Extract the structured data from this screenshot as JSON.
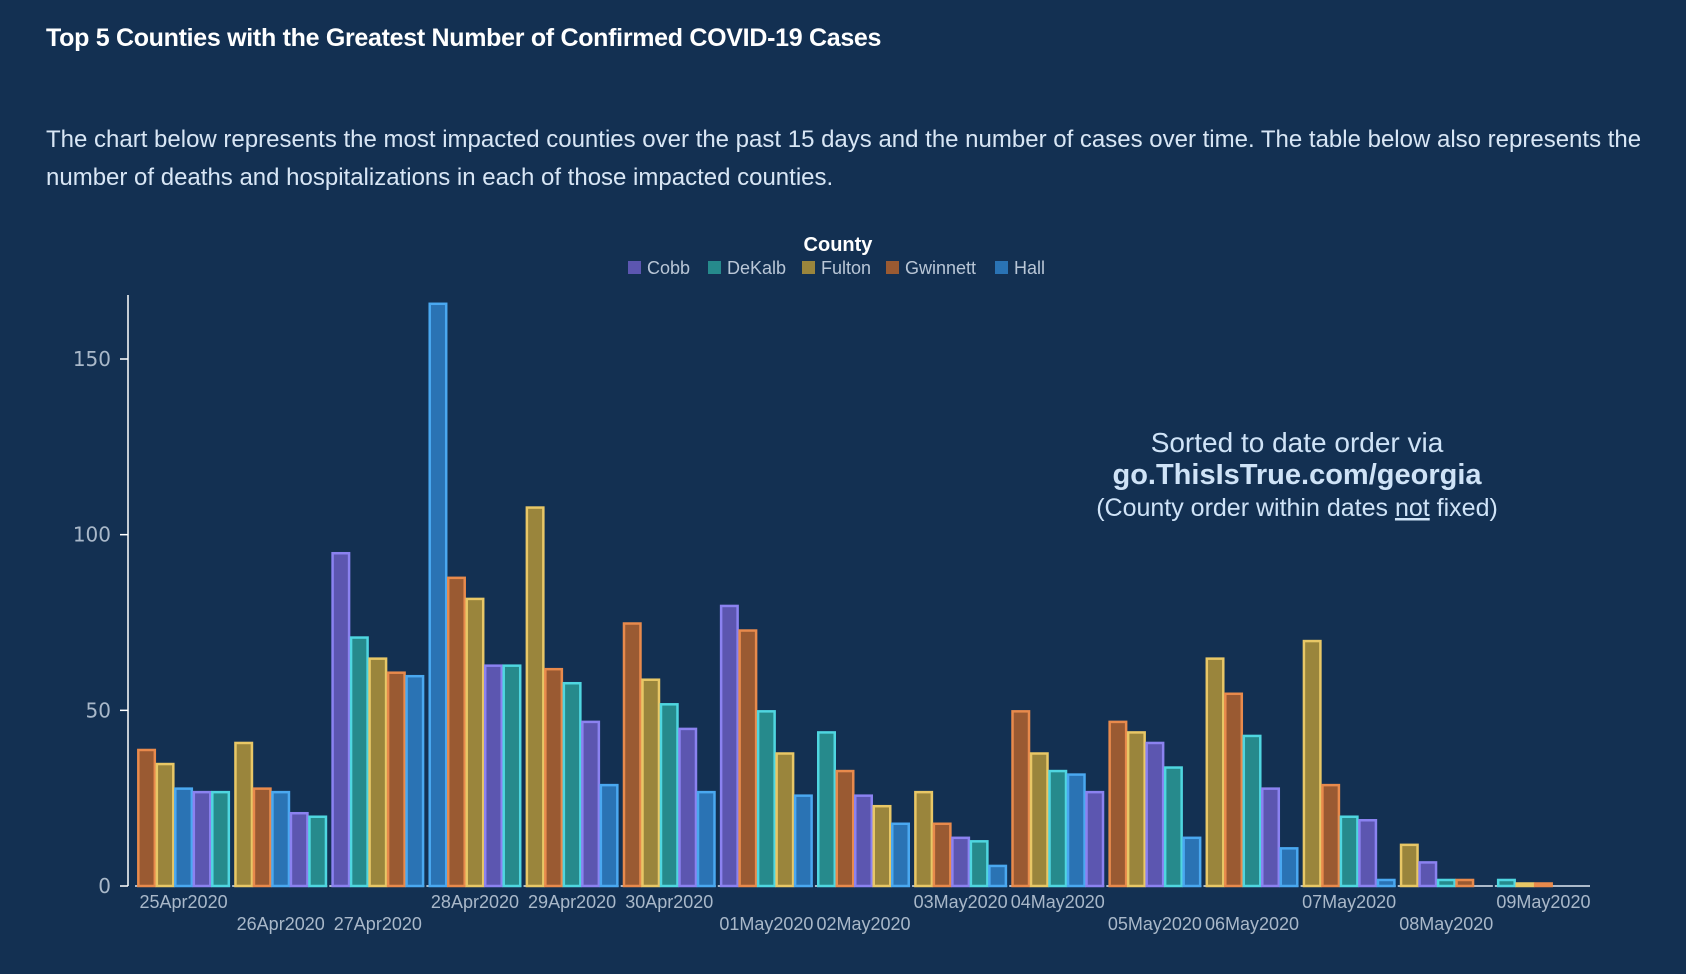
{
  "header": {
    "title": "Top 5 Counties with the Greatest Number of Confirmed COVID-19 Cases",
    "description": "The chart below represents the most impacted counties over the past 15 days and the number of cases over time. The table below also represents the number of deaths and hospitalizations in each of those impacted counties."
  },
  "annotation": {
    "line1": "Sorted to date order via",
    "line2": "go.ThisIsTrue.com/georgia",
    "line3_pre": "(County order within dates ",
    "line3_underlined": "not",
    "line3_post": " fixed)"
  },
  "chart_data": {
    "type": "bar",
    "title": "Top 5 Counties with the Greatest Number of Confirmed COVID-19 Cases",
    "xlabel": "",
    "ylabel": "",
    "ylim": [
      0,
      168
    ],
    "yticks": [
      0,
      50,
      100,
      150
    ],
    "grid": false,
    "legend": {
      "title": "County",
      "placement": "top-center",
      "entries": [
        {
          "name": "Cobb",
          "fill": "#5c56b0",
          "stroke": "#8b82f0"
        },
        {
          "name": "DeKalb",
          "fill": "#268a8c",
          "stroke": "#4fd6e0"
        },
        {
          "name": "Fulton",
          "fill": "#9a853c",
          "stroke": "#e8c766"
        },
        {
          "name": "Gwinnett",
          "fill": "#9a5a32",
          "stroke": "#e88a4c"
        },
        {
          "name": "Hall",
          "fill": "#2a73b4",
          "stroke": "#4aa8f0"
        }
      ]
    },
    "categories": [
      "25Apr2020",
      "26Apr2020",
      "27Apr2020",
      "28Apr2020",
      "29Apr2020",
      "30Apr2020",
      "01May2020",
      "02May2020",
      "03May2020",
      "04May2020",
      "05May2020",
      "06May2020",
      "07May2020",
      "08May2020",
      "09May2020"
    ],
    "groups": [
      {
        "date": "25Apr2020",
        "bars": [
          {
            "county": "Gwinnett",
            "value": 39
          },
          {
            "county": "Fulton",
            "value": 35
          },
          {
            "county": "Hall",
            "value": 28
          },
          {
            "county": "Cobb",
            "value": 27
          },
          {
            "county": "DeKalb",
            "value": 27
          }
        ]
      },
      {
        "date": "26Apr2020",
        "bars": [
          {
            "county": "Fulton",
            "value": 41
          },
          {
            "county": "Gwinnett",
            "value": 28
          },
          {
            "county": "Hall",
            "value": 27
          },
          {
            "county": "Cobb",
            "value": 21
          },
          {
            "county": "DeKalb",
            "value": 20
          }
        ]
      },
      {
        "date": "27Apr2020",
        "bars": [
          {
            "county": "Cobb",
            "value": 95
          },
          {
            "county": "DeKalb",
            "value": 71
          },
          {
            "county": "Fulton",
            "value": 65
          },
          {
            "county": "Gwinnett",
            "value": 61
          },
          {
            "county": "Hall",
            "value": 60
          }
        ]
      },
      {
        "date": "28Apr2020",
        "bars": [
          {
            "county": "Hall",
            "value": 166
          },
          {
            "county": "Gwinnett",
            "value": 88
          },
          {
            "county": "Fulton",
            "value": 82
          },
          {
            "county": "Cobb",
            "value": 63
          },
          {
            "county": "DeKalb",
            "value": 63
          }
        ]
      },
      {
        "date": "29Apr2020",
        "bars": [
          {
            "county": "Fulton",
            "value": 108
          },
          {
            "county": "Gwinnett",
            "value": 62
          },
          {
            "county": "DeKalb",
            "value": 58
          },
          {
            "county": "Cobb",
            "value": 47
          },
          {
            "county": "Hall",
            "value": 29
          }
        ]
      },
      {
        "date": "30Apr2020",
        "bars": [
          {
            "county": "Gwinnett",
            "value": 75
          },
          {
            "county": "Fulton",
            "value": 59
          },
          {
            "county": "DeKalb",
            "value": 52
          },
          {
            "county": "Cobb",
            "value": 45
          },
          {
            "county": "Hall",
            "value": 27
          }
        ]
      },
      {
        "date": "01May2020",
        "bars": [
          {
            "county": "Cobb",
            "value": 80
          },
          {
            "county": "Gwinnett",
            "value": 73
          },
          {
            "county": "DeKalb",
            "value": 50
          },
          {
            "county": "Fulton",
            "value": 38
          },
          {
            "county": "Hall",
            "value": 26
          }
        ]
      },
      {
        "date": "02May2020",
        "bars": [
          {
            "county": "DeKalb",
            "value": 44
          },
          {
            "county": "Gwinnett",
            "value": 33
          },
          {
            "county": "Cobb",
            "value": 26
          },
          {
            "county": "Fulton",
            "value": 23
          },
          {
            "county": "Hall",
            "value": 18
          }
        ]
      },
      {
        "date": "03May2020",
        "bars": [
          {
            "county": "Fulton",
            "value": 27
          },
          {
            "county": "Gwinnett",
            "value": 18
          },
          {
            "county": "Cobb",
            "value": 14
          },
          {
            "county": "DeKalb",
            "value": 13
          },
          {
            "county": "Hall",
            "value": 6
          }
        ]
      },
      {
        "date": "04May2020",
        "bars": [
          {
            "county": "Gwinnett",
            "value": 50
          },
          {
            "county": "Fulton",
            "value": 38
          },
          {
            "county": "DeKalb",
            "value": 33
          },
          {
            "county": "Hall",
            "value": 32
          },
          {
            "county": "Cobb",
            "value": 27
          }
        ]
      },
      {
        "date": "05May2020",
        "bars": [
          {
            "county": "Gwinnett",
            "value": 47
          },
          {
            "county": "Fulton",
            "value": 44
          },
          {
            "county": "Cobb",
            "value": 41
          },
          {
            "county": "DeKalb",
            "value": 34
          },
          {
            "county": "Hall",
            "value": 14
          }
        ]
      },
      {
        "date": "06May2020",
        "bars": [
          {
            "county": "Fulton",
            "value": 65
          },
          {
            "county": "Gwinnett",
            "value": 55
          },
          {
            "county": "DeKalb",
            "value": 43
          },
          {
            "county": "Cobb",
            "value": 28
          },
          {
            "county": "Hall",
            "value": 11
          }
        ]
      },
      {
        "date": "07May2020",
        "bars": [
          {
            "county": "Fulton",
            "value": 70
          },
          {
            "county": "Gwinnett",
            "value": 29
          },
          {
            "county": "DeKalb",
            "value": 20
          },
          {
            "county": "Cobb",
            "value": 19
          },
          {
            "county": "Hall",
            "value": 2
          }
        ]
      },
      {
        "date": "08May2020",
        "bars": [
          {
            "county": "Fulton",
            "value": 12
          },
          {
            "county": "Cobb",
            "value": 7
          },
          {
            "county": "DeKalb",
            "value": 2
          },
          {
            "county": "Gwinnett",
            "value": 2
          }
        ]
      },
      {
        "date": "09May2020",
        "bars": [
          {
            "county": "DeKalb",
            "value": 2
          },
          {
            "county": "Fulton",
            "value": 1
          },
          {
            "county": "Gwinnett",
            "value": 1
          }
        ]
      }
    ]
  }
}
